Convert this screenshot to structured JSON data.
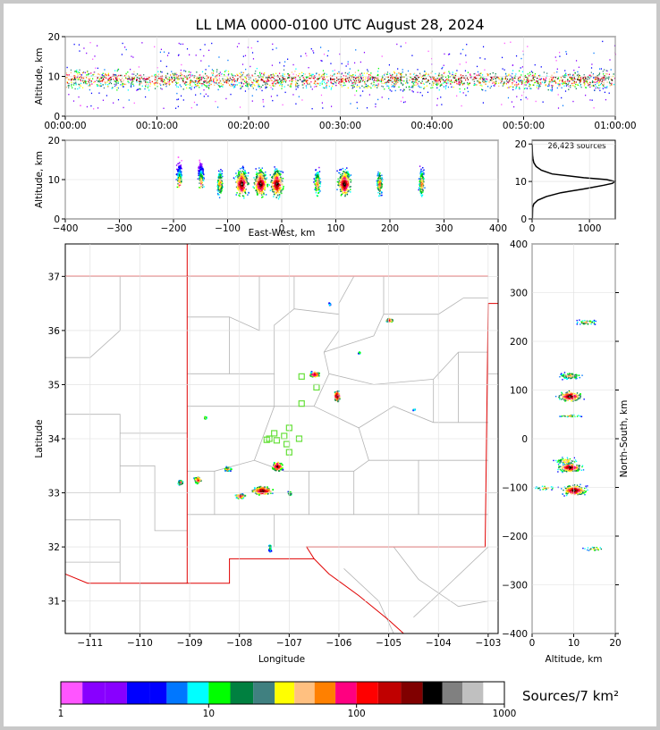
{
  "title": "LL LMA 0000-0100 UTC August 28, 2024",
  "colors": {
    "frame_bg": "#c8c8c8",
    "state_line": "#e00000",
    "county_line": "#b4b4b4",
    "sensor": "#66e03a",
    "profile_line": "#000000"
  },
  "sources_label": "26,423 sources",
  "colorbar": {
    "label": "Sources/7 km²",
    "colors": [
      "#ff55ff",
      "#8800ff",
      "#8800ff",
      "#0000ff",
      "#0000ff",
      "#0077ff",
      "#00ffff",
      "#00ff00",
      "#008040",
      "#408080",
      "#ffff00",
      "#ffc080",
      "#ff8000",
      "#ff0080",
      "#ff0000",
      "#c00000",
      "#800000",
      "#000000",
      "#808080",
      "#c0c0c0",
      "#ffffff"
    ],
    "tick_labels": [
      "1",
      "10",
      "100",
      "1000"
    ]
  },
  "chart_data": [
    {
      "id": "time-height",
      "type": "scatter",
      "xlabel": "",
      "ylabel": "Altitude, km",
      "xlim": [
        0,
        60
      ],
      "ylim": [
        0,
        20
      ],
      "x_tick_values": [
        0,
        10,
        20,
        30,
        40,
        50,
        60
      ],
      "x_tick_labels": [
        "00:00:00",
        "00:10:00",
        "00:20:00",
        "00:30:00",
        "00:40:00",
        "00:50:00",
        "01:00:00"
      ],
      "y_ticks": [
        0,
        10,
        20
      ],
      "description_value_range": {
        "core_altitude_km": [
          5,
          13
        ],
        "sparse_top_km": 20
      }
    },
    {
      "id": "east-west-height",
      "type": "scatter",
      "xlabel": "East-West, km",
      "ylabel": "Altitude, km",
      "xlim": [
        -400,
        400
      ],
      "ylim": [
        0,
        20
      ],
      "x_ticks": [
        -400,
        -300,
        -200,
        -100,
        0,
        100,
        200,
        300,
        400
      ],
      "y_ticks": [
        0,
        10,
        20
      ],
      "clusters_x_km": [
        -190,
        -150,
        -115,
        -75,
        -40,
        -10,
        65,
        115,
        180,
        258
      ]
    },
    {
      "id": "altitude-histogram",
      "type": "line",
      "xlabel": "",
      "ylabel": "",
      "xlim": [
        0,
        1450
      ],
      "ylim": [
        0,
        21
      ],
      "x_ticks": [
        0,
        1000
      ],
      "y_ticks": [
        0,
        10,
        20
      ],
      "series": [
        {
          "altitude_km": [
            0,
            3,
            4,
            5,
            6,
            7,
            8,
            9,
            9.5,
            10,
            10.5,
            11,
            12,
            13,
            14,
            15,
            16,
            17,
            18,
            20
          ],
          "sources": [
            5,
            10,
            30,
            100,
            250,
            500,
            900,
            1250,
            1400,
            1440,
            1300,
            900,
            350,
            160,
            70,
            30,
            15,
            8,
            4,
            2
          ]
        }
      ]
    },
    {
      "id": "plan-view",
      "type": "scatter",
      "xlabel": "Longitude",
      "ylabel": "Latitude",
      "xlim": [
        -111.5,
        -102.8
      ],
      "ylim": [
        30.4,
        37.6
      ],
      "x_ticks": [
        -111,
        -110,
        -109,
        -108,
        -107,
        -106,
        -105,
        -104,
        -103
      ],
      "y_ticks": [
        31,
        32,
        33,
        34,
        35,
        36,
        37
      ],
      "sensors_lonlat": [
        [
          -106.75,
          35.15
        ],
        [
          -106.45,
          34.95
        ],
        [
          -106.75,
          34.65
        ],
        [
          -107.0,
          34.2
        ],
        [
          -107.1,
          34.05
        ],
        [
          -107.3,
          34.1
        ],
        [
          -107.4,
          34.0
        ],
        [
          -107.25,
          33.97
        ],
        [
          -107.05,
          33.9
        ],
        [
          -107.0,
          33.75
        ],
        [
          -106.8,
          34.0
        ],
        [
          -107.45,
          33.98
        ]
      ]
    },
    {
      "id": "north-south-height",
      "type": "scatter",
      "xlabel": "Altitude, km",
      "ylabel": "North-South, km",
      "xlim": [
        0,
        20
      ],
      "ylim": [
        -400,
        400
      ],
      "x_ticks": [
        0,
        10,
        20
      ],
      "y_ticks": [
        -400,
        -300,
        -200,
        -100,
        0,
        100,
        200,
        300,
        400
      ]
    }
  ]
}
